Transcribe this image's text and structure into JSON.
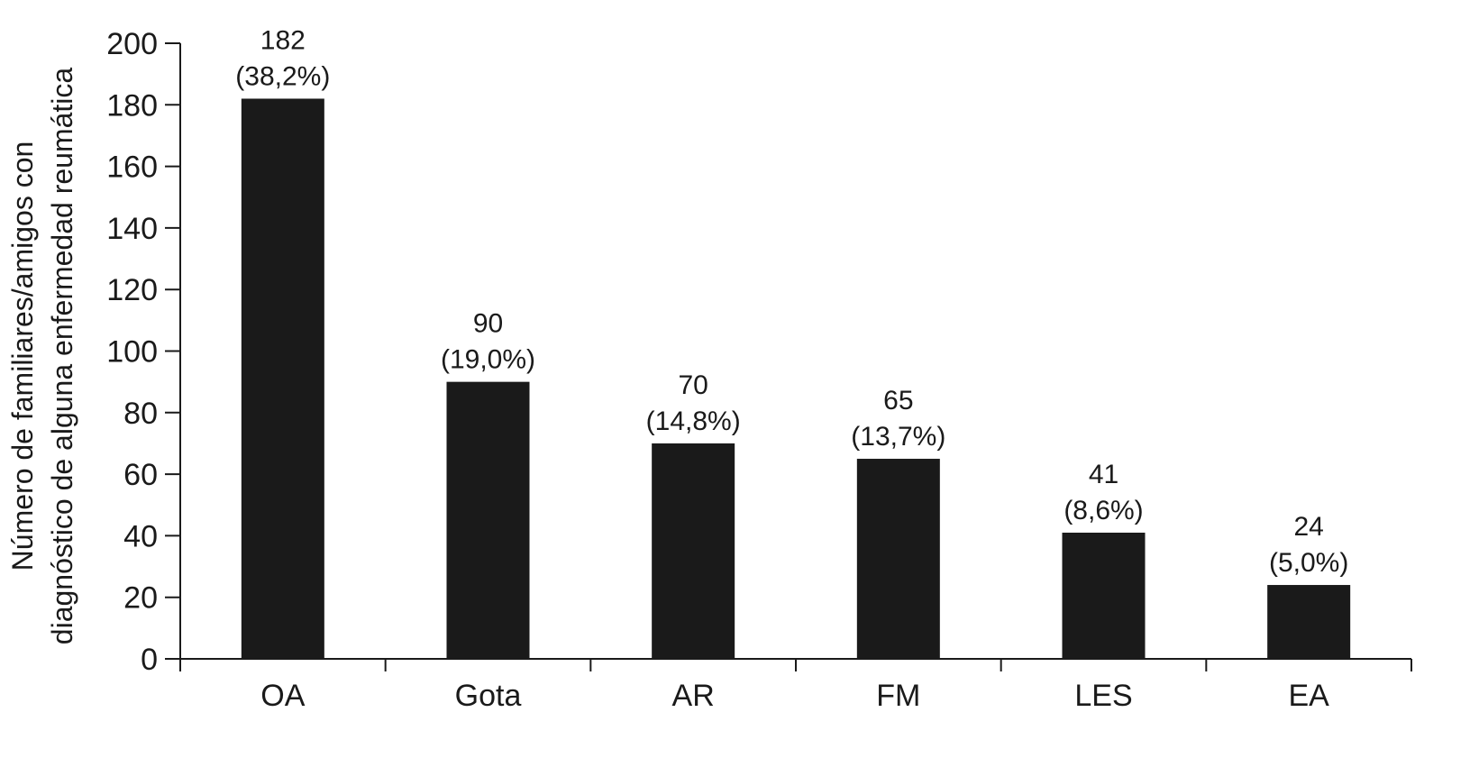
{
  "chart_data": {
    "type": "bar",
    "title": "",
    "xlabel": "",
    "ylabel_lines": [
      "Número de familiares/amigos con",
      "diagnóstico de alguna enfermedad reumática"
    ],
    "categories": [
      "OA",
      "Gota",
      "AR",
      "FM",
      "LES",
      "EA"
    ],
    "values": [
      182,
      90,
      70,
      65,
      41,
      24
    ],
    "value_labels": [
      "182",
      "90",
      "70",
      "65",
      "41",
      "24"
    ],
    "percent_labels": [
      "(38,2%)",
      "(19,0%)",
      "(14,8%)",
      "(13,7%)",
      "(8,6%)",
      "(5,0%)"
    ],
    "ylim": [
      0,
      200
    ],
    "yticks": [
      0,
      20,
      40,
      60,
      80,
      100,
      120,
      140,
      160,
      180,
      200
    ],
    "grid": false,
    "bar_color": "#1a1a1a"
  }
}
